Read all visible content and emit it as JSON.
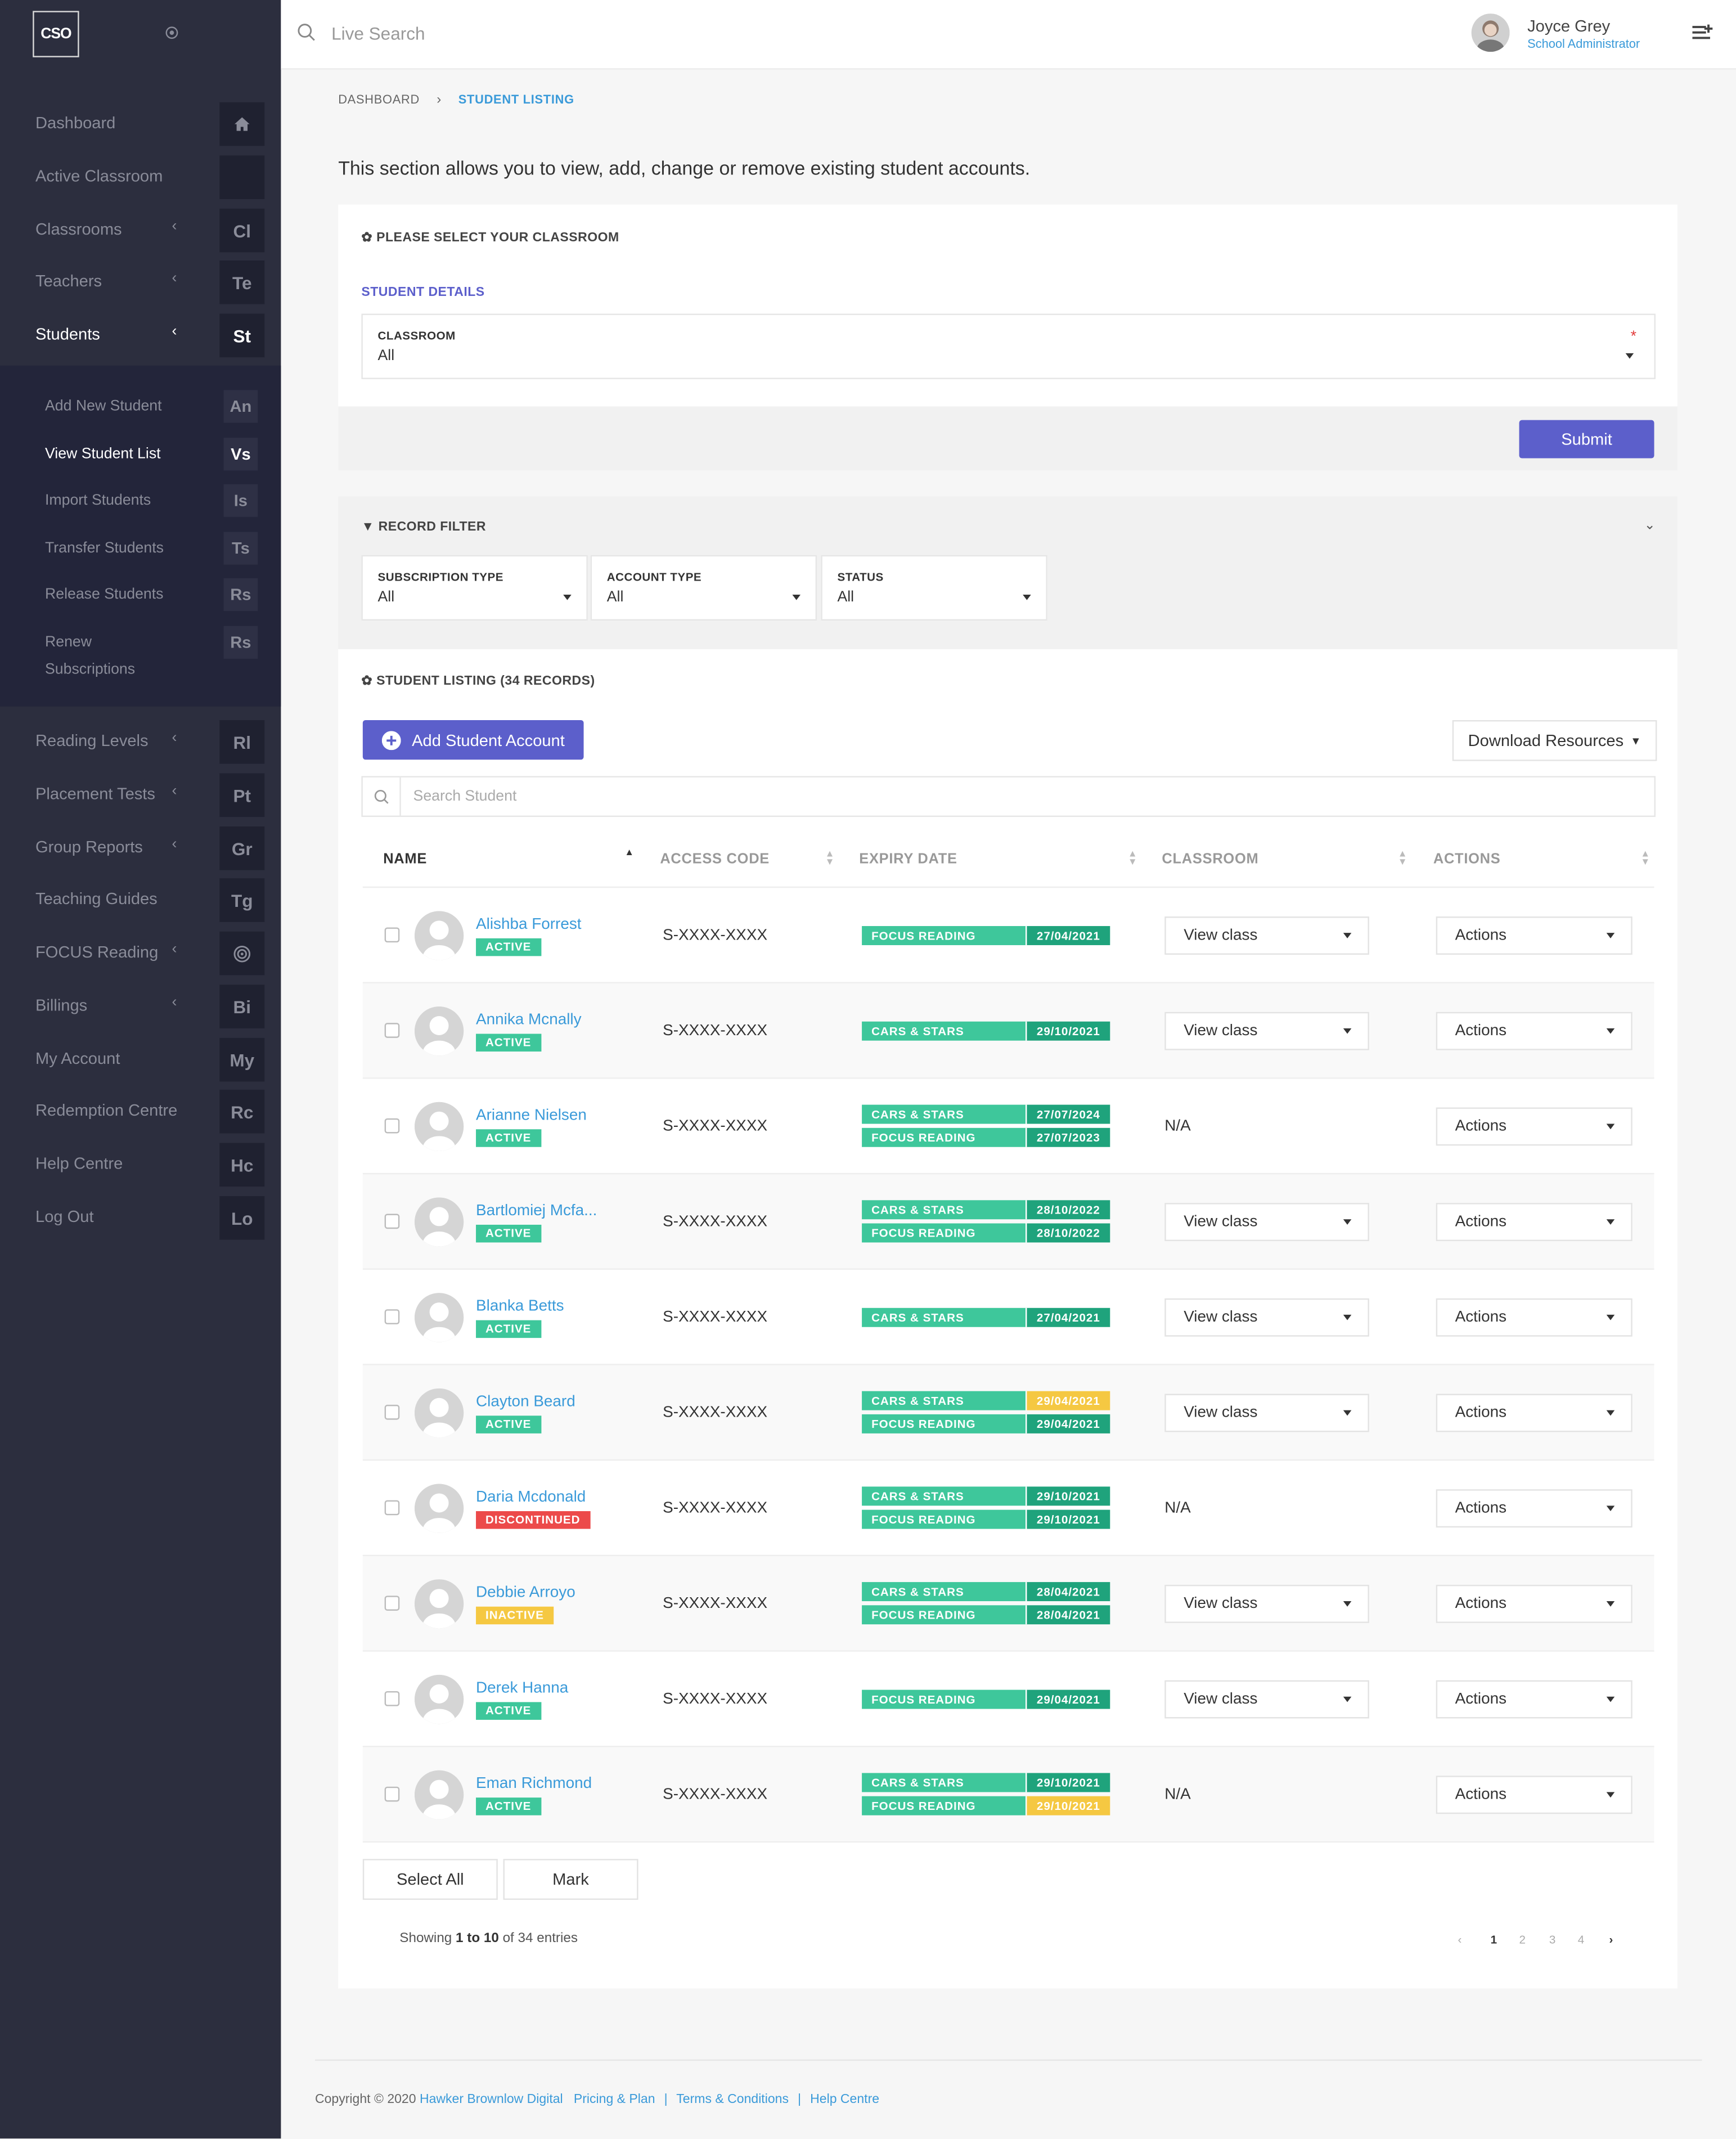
{
  "brand": {
    "logo_text": "CSO"
  },
  "colors": {
    "sidebar": "#2c2e3e",
    "accent": "#5c5fcb",
    "link": "#3a9ad9",
    "active": "#3ec79b",
    "discontinued": "#ec4a4a",
    "inactive": "#f5c842"
  },
  "sidebar": {
    "items": [
      {
        "label": "Dashboard",
        "badge": "",
        "icon": "home-icon",
        "chevron": false
      },
      {
        "label": "Active Classroom",
        "badge": "",
        "chevron": false
      },
      {
        "label": "Classrooms",
        "badge": "Cl",
        "chevron": true
      },
      {
        "label": "Teachers",
        "badge": "Te",
        "chevron": true
      },
      {
        "label": "Students",
        "badge": "St",
        "chevron": true,
        "active": true
      },
      {
        "label": "Reading Levels",
        "badge": "Rl",
        "chevron": true
      },
      {
        "label": "Placement Tests",
        "badge": "Pt",
        "chevron": true
      },
      {
        "label": "Group Reports",
        "badge": "Gr",
        "chevron": true
      },
      {
        "label": "Teaching Guides",
        "badge": "Tg",
        "chevron": false
      },
      {
        "label": "FOCUS Reading",
        "badge": "",
        "icon": "target-icon",
        "chevron": true
      },
      {
        "label": "Billings",
        "badge": "Bi",
        "chevron": true
      },
      {
        "label": "My Account",
        "badge": "My",
        "chevron": false
      },
      {
        "label": "Redemption Centre",
        "badge": "Rc",
        "chevron": false
      },
      {
        "label": "Help Centre",
        "badge": "Hc",
        "chevron": false
      },
      {
        "label": "Log Out",
        "badge": "Lo",
        "chevron": false
      }
    ],
    "subitems": [
      {
        "label": "Add New Student",
        "badge": "An"
      },
      {
        "label": "View Student List",
        "badge": "Vs",
        "active": true
      },
      {
        "label": "Import Students",
        "badge": "Is"
      },
      {
        "label": "Transfer Students",
        "badge": "Ts"
      },
      {
        "label": "Release Students",
        "badge": "Rs"
      },
      {
        "label": "Renew",
        "label2": "Subscriptions",
        "badge": "Rs"
      }
    ]
  },
  "topbar": {
    "search_placeholder": "Live Search",
    "user_name": "Joyce Grey",
    "user_role": "School Administrator"
  },
  "breadcrumb": {
    "home": "DASHBOARD",
    "current": "STUDENT LISTING"
  },
  "intro": "This section allows you to view, add, change or remove existing student accounts.",
  "classroom_section": {
    "title": "PLEASE SELECT YOUR CLASSROOM",
    "details_title": "STUDENT DETAILS",
    "classroom_label": "CLASSROOM",
    "classroom_value": "All",
    "required_mark": "*",
    "submit": "Submit"
  },
  "filter": {
    "title": "RECORD FILTER",
    "fields": [
      {
        "label": "SUBSCRIPTION TYPE",
        "value": "All"
      },
      {
        "label": "ACCOUNT TYPE",
        "value": "All"
      },
      {
        "label": "STATUS",
        "value": "All"
      }
    ]
  },
  "listing": {
    "title": "STUDENT LISTING (34 RECORDS)",
    "add_button": "Add Student Account",
    "download_button": "Download Resources",
    "search_placeholder": "Search Student",
    "columns": [
      "NAME",
      "ACCESS CODE",
      "EXPIRY DATE",
      "CLASSROOM",
      "ACTIONS"
    ],
    "rows": [
      {
        "name": "Alishba Forrest",
        "status": "ACTIVE",
        "code": "S-XXXX-XXXX",
        "subs": [
          {
            "product": "FOCUS READING",
            "date": "27/04/2021"
          }
        ],
        "classroom": "View class",
        "actions": "Actions"
      },
      {
        "name": "Annika Mcnally",
        "status": "ACTIVE",
        "code": "S-XXXX-XXXX",
        "subs": [
          {
            "product": "CARS & STARS",
            "date": "29/10/2021"
          }
        ],
        "classroom": "View class",
        "actions": "Actions"
      },
      {
        "name": "Arianne Nielsen",
        "status": "ACTIVE",
        "code": "S-XXXX-XXXX",
        "subs": [
          {
            "product": "CARS & STARS",
            "date": "27/07/2024"
          },
          {
            "product": "FOCUS READING",
            "date": "27/07/2023"
          }
        ],
        "classroom": "N/A",
        "actions": "Actions"
      },
      {
        "name": "Bartlomiej Mcfa...",
        "status": "ACTIVE",
        "code": "S-XXXX-XXXX",
        "subs": [
          {
            "product": "CARS & STARS",
            "date": "28/10/2022"
          },
          {
            "product": "FOCUS READING",
            "date": "28/10/2022"
          }
        ],
        "classroom": "View class",
        "actions": "Actions"
      },
      {
        "name": "Blanka Betts",
        "status": "ACTIVE",
        "code": "S-XXXX-XXXX",
        "subs": [
          {
            "product": "CARS & STARS",
            "date": "27/04/2021"
          }
        ],
        "classroom": "View class",
        "actions": "Actions"
      },
      {
        "name": "Clayton Beard",
        "status": "ACTIVE",
        "code": "S-XXXX-XXXX",
        "subs": [
          {
            "product": "CARS & STARS",
            "date": "29/04/2021",
            "warn": true
          },
          {
            "product": "FOCUS READING",
            "date": "29/04/2021"
          }
        ],
        "classroom": "View class",
        "actions": "Actions"
      },
      {
        "name": "Daria Mcdonald",
        "status": "DISCONTINUED",
        "code": "S-XXXX-XXXX",
        "subs": [
          {
            "product": "CARS & STARS",
            "date": "29/10/2021"
          },
          {
            "product": "FOCUS READING",
            "date": "29/10/2021"
          }
        ],
        "classroom": "N/A",
        "actions": "Actions"
      },
      {
        "name": "Debbie Arroyo",
        "status": "INACTIVE",
        "code": "S-XXXX-XXXX",
        "subs": [
          {
            "product": "CARS & STARS",
            "date": "28/04/2021"
          },
          {
            "product": "FOCUS READING",
            "date": "28/04/2021"
          }
        ],
        "classroom": "View class",
        "actions": "Actions"
      },
      {
        "name": "Derek Hanna",
        "status": "ACTIVE",
        "code": "S-XXXX-XXXX",
        "subs": [
          {
            "product": "FOCUS READING",
            "date": "29/04/2021"
          }
        ],
        "classroom": "View class",
        "actions": "Actions"
      },
      {
        "name": "Eman Richmond",
        "status": "ACTIVE",
        "code": "S-XXXX-XXXX",
        "subs": [
          {
            "product": "CARS & STARS",
            "date": "29/10/2021"
          },
          {
            "product": "FOCUS READING",
            "date": "29/10/2021",
            "warn": true
          }
        ],
        "classroom": "N/A",
        "actions": "Actions"
      }
    ],
    "select_all": "Select All",
    "mark": "Mark",
    "showing_prefix": "Showing ",
    "showing_range": "1 to 10",
    "showing_suffix": " of 34 entries",
    "pages": [
      "‹",
      "1",
      "2",
      "3",
      "4",
      "›"
    ],
    "current_page": "1"
  },
  "footer": {
    "copyright": "Copyright © 2020 ",
    "company": "Hawker Brownlow Digital",
    "links": [
      "Pricing & Plan",
      "Terms & Conditions",
      "Help Centre"
    ],
    "separator": "|"
  }
}
